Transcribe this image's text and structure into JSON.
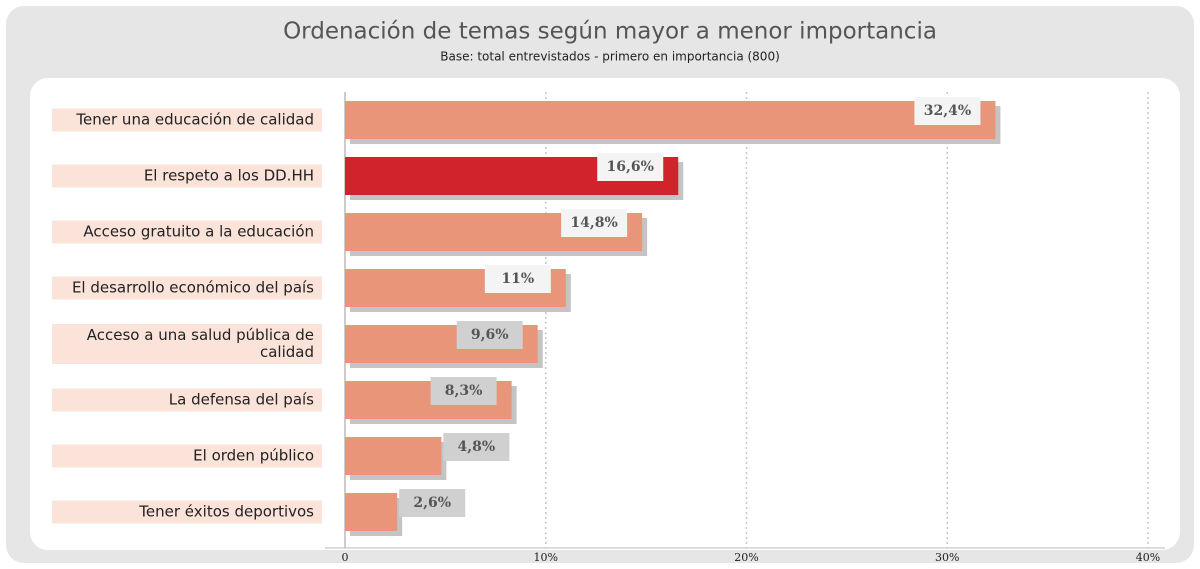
{
  "chart_data": {
    "type": "barh",
    "title": "Ordenación de temas según mayor a menor importancia",
    "subtitle": "Base: total entrevistados - primero en importancia (800)",
    "categories": [
      "Tener una educación de calidad",
      "El respeto a los DD.HH",
      "Acceso gratuito a la educación",
      "El desarrollo económico del país",
      "Acceso a una salud pública de calidad",
      "La defensa del país",
      "El orden público",
      "Tener éxitos deportivos"
    ],
    "values": [
      32.4,
      16.6,
      14.8,
      11,
      9.6,
      8.3,
      4.8,
      2.6
    ],
    "value_labels": [
      "32,4%",
      "16,6%",
      "14,8%",
      "11%",
      "9,6%",
      "8,3%",
      "4,8%",
      "2,6%"
    ],
    "colors": [
      "#e8957a",
      "#d0232c",
      "#e8957a",
      "#e8957a",
      "#e8957a",
      "#e8957a",
      "#e8957a",
      "#e8957a"
    ],
    "xlim": [
      0,
      40
    ],
    "xticks": [
      0,
      {
        "value": 10,
        "label": "10%"
      },
      {
        "value": 20,
        "label": "20%"
      },
      {
        "value": 30,
        "label": "30%"
      },
      {
        "value": 40,
        "label": "40%"
      }
    ],
    "grid": true
  }
}
